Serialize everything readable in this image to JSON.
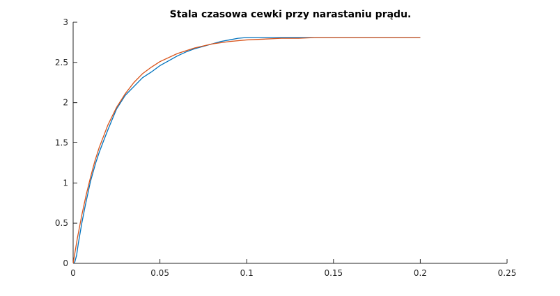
{
  "chart_data": {
    "type": "line",
    "title": "Stala czasowa cewki przy narastaniu prądu.",
    "xlabel": "",
    "ylabel": "",
    "xlim": [
      0,
      0.25
    ],
    "ylim": [
      0,
      3
    ],
    "xticks": [
      0,
      0.05,
      0.1,
      0.15,
      0.2,
      0.25
    ],
    "xtick_labels": [
      "0",
      "0.05",
      "0.1",
      "0.15",
      "0.2",
      "0.25"
    ],
    "yticks": [
      0,
      0.5,
      1,
      1.5,
      2,
      2.5,
      3
    ],
    "ytick_labels": [
      "0",
      "0.5",
      "1",
      "1.5",
      "2",
      "2.5",
      "3"
    ],
    "grid": false,
    "legend": "none",
    "series": [
      {
        "color": "#0072BD",
        "x": [
          0,
          0.001,
          0.002,
          0.003,
          0.005,
          0.007,
          0.01,
          0.013,
          0.015,
          0.018,
          0.02,
          0.025,
          0.03,
          0.035,
          0.04,
          0.045,
          0.05,
          0.055,
          0.06,
          0.065,
          0.07,
          0.075,
          0.08,
          0.085,
          0.09,
          0.095,
          0.1,
          0.11,
          0.12,
          0.13,
          0.14,
          0.15,
          0.16,
          0.17,
          0.18,
          0.19,
          0.2
        ],
        "y": [
          0,
          0.02,
          0.1,
          0.25,
          0.5,
          0.72,
          1.02,
          1.25,
          1.38,
          1.55,
          1.66,
          1.92,
          2.09,
          2.2,
          2.31,
          2.38,
          2.46,
          2.52,
          2.58,
          2.63,
          2.67,
          2.7,
          2.73,
          2.76,
          2.78,
          2.8,
          2.81,
          2.81,
          2.81,
          2.81,
          2.81,
          2.81,
          2.81,
          2.81,
          2.81,
          2.81,
          2.81
        ]
      },
      {
        "color": "#D95319",
        "x": [
          0,
          0.0025,
          0.005,
          0.0075,
          0.01,
          0.0125,
          0.015,
          0.02,
          0.025,
          0.03,
          0.035,
          0.04,
          0.045,
          0.05,
          0.06,
          0.07,
          0.08,
          0.09,
          0.1,
          0.11,
          0.12,
          0.13,
          0.14,
          0.15,
          0.16,
          0.17,
          0.18,
          0.19,
          0.2
        ],
        "y": [
          0,
          0.32,
          0.6,
          0.85,
          1.07,
          1.27,
          1.44,
          1.72,
          1.94,
          2.11,
          2.25,
          2.36,
          2.44,
          2.51,
          2.61,
          2.68,
          2.73,
          2.76,
          2.78,
          2.79,
          2.8,
          2.8,
          2.81,
          2.81,
          2.81,
          2.81,
          2.81,
          2.81,
          2.81
        ]
      }
    ]
  }
}
